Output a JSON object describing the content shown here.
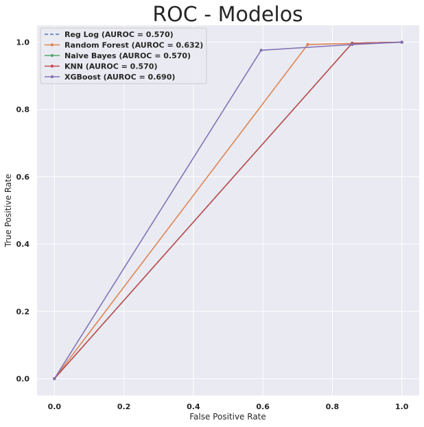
{
  "chart_data": {
    "type": "line",
    "title": "ROC - Modelos",
    "xlabel": "False Positive Rate",
    "ylabel": "True Positive Rate",
    "xlim": [
      -0.05,
      1.05
    ],
    "ylim": [
      -0.05,
      1.05
    ],
    "xticks": [
      0.0,
      0.2,
      0.4,
      0.6,
      0.8,
      1.0
    ],
    "yticks": [
      0.0,
      0.2,
      0.4,
      0.6,
      0.8,
      1.0
    ],
    "xtick_labels": [
      "0.0",
      "0.2",
      "0.4",
      "0.6",
      "0.8",
      "1.0"
    ],
    "ytick_labels": [
      "0.0",
      "0.2",
      "0.4",
      "0.6",
      "0.8",
      "1.0"
    ],
    "grid": true,
    "legend_position": "top-left",
    "background_color": "#eaeaf2",
    "grid_color": "#ffffff",
    "series": [
      {
        "name": "Reg Log (AUROC = 0.570)",
        "color": "#4c72b0",
        "style": "dashed",
        "marker": "none",
        "x": [
          0.0,
          0.857,
          1.0
        ],
        "y": [
          0.0,
          0.997,
          1.0
        ]
      },
      {
        "name": "Random Forest (AUROC = 0.632)",
        "color": "#dd8452",
        "style": "solid",
        "marker": "dot",
        "x": [
          0.0,
          0.729,
          1.0
        ],
        "y": [
          0.0,
          0.993,
          1.0
        ]
      },
      {
        "name": "Naive Bayes (AUROC = 0.570)",
        "color": "#55a868",
        "style": "solid",
        "marker": "dot",
        "x": [
          0.0,
          0.857,
          1.0
        ],
        "y": [
          0.0,
          0.997,
          1.0
        ]
      },
      {
        "name": "KNN (AUROC = 0.570)",
        "color": "#c44e52",
        "style": "solid",
        "marker": "dot",
        "x": [
          0.0,
          0.857,
          1.0
        ],
        "y": [
          0.0,
          0.997,
          1.0
        ]
      },
      {
        "name": "XGBoost (AUROC = 0.690)",
        "color": "#8172b3",
        "style": "solid",
        "marker": "dot",
        "x": [
          0.0,
          0.595,
          0.857,
          1.0
        ],
        "y": [
          0.0,
          0.976,
          0.993,
          1.0
        ]
      }
    ]
  }
}
